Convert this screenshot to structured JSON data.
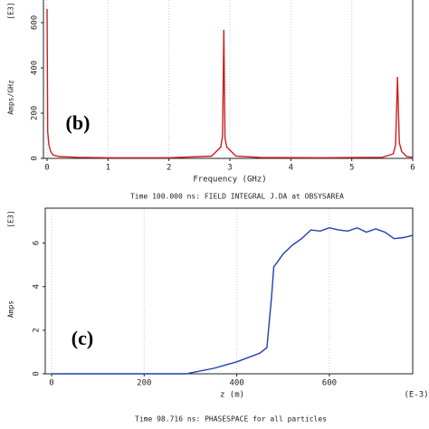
{
  "chart_data": [
    {
      "type": "line",
      "panel_label": "(b)",
      "xlabel": "Frequency (GHz)",
      "ylabel": "Amps/GHz",
      "y_scale_label": "[E3]",
      "x": [
        0,
        0.01,
        0.03,
        0.06,
        0.1,
        0.2,
        0.5,
        1,
        2,
        2.7,
        2.85,
        2.88,
        2.9,
        2.92,
        2.95,
        3.1,
        3.5,
        4.5,
        5.5,
        5.68,
        5.72,
        5.75,
        5.78,
        5.82,
        5.9,
        6
      ],
      "values": [
        660,
        120,
        60,
        30,
        15,
        8,
        5,
        3,
        3,
        10,
        50,
        100,
        568,
        90,
        50,
        10,
        4,
        3,
        5,
        20,
        60,
        360,
        70,
        30,
        8,
        5
      ],
      "color": "#cc1f1f",
      "xlim": [
        0,
        6
      ],
      "ylim": [
        0,
        700
      ],
      "xticks": [
        0,
        1,
        2,
        3,
        4,
        5,
        6
      ],
      "yticks": [
        0,
        200,
        400,
        600
      ],
      "grid": true
    },
    {
      "type": "line",
      "title": "Time 100.000 ns: FIELD INTEGRAL J.DA at OBSYSAREA",
      "panel_label": "(c)",
      "xlabel": "z (m)",
      "ylabel": "Amps",
      "y_scale_label": "[E3]",
      "x_scale_label": "(E-3)",
      "x": [
        0,
        100,
        200,
        290,
        350,
        400,
        450,
        465,
        475,
        480,
        490,
        500,
        520,
        540,
        560,
        580,
        600,
        620,
        640,
        660,
        680,
        700,
        720,
        740,
        760,
        780
      ],
      "values": [
        0,
        0,
        0,
        0,
        0.25,
        0.55,
        0.95,
        1.2,
        3.5,
        4.9,
        5.2,
        5.5,
        5.9,
        6.2,
        6.6,
        6.55,
        6.7,
        6.6,
        6.55,
        6.7,
        6.5,
        6.65,
        6.5,
        6.2,
        6.25,
        6.35
      ],
      "color": "#1f3fb0",
      "xlim": [
        0,
        780
      ],
      "ylim": [
        0,
        7.6
      ],
      "xticks": [
        0,
        200,
        400,
        600
      ],
      "yticks": [
        0,
        2,
        4,
        6
      ],
      "grid": true
    }
  ],
  "caption": "Time 98.716 ns: PHASESPACE for all particles"
}
